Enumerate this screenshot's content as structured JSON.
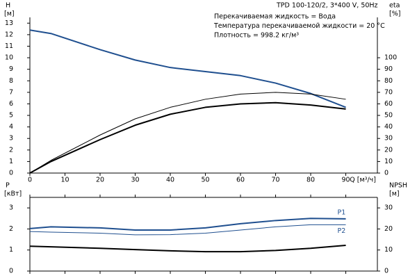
{
  "chart_data": [
    {
      "type": "line",
      "title": "TPD 100-120/2, 3*400 V, 50Hz",
      "annotations": [
        "Перекачиваемая жидкость = Вода",
        "Температура перекачиваемой жидкости = 20 °C",
        "Плотность = 998.2 кг/м³"
      ],
      "x_label": "Q [м³/ч]",
      "y_label": "H",
      "y_unit": "[м]",
      "y2_label": "eta",
      "y2_unit": "[%]",
      "x": [
        0,
        6,
        20,
        30,
        40,
        50,
        60,
        70,
        80,
        90
      ],
      "xlim": [
        0,
        99
      ],
      "xticks": [
        0,
        10,
        20,
        30,
        40,
        50,
        60,
        70,
        80,
        90
      ],
      "ylim": [
        0,
        13.5
      ],
      "yticks": [
        0,
        1,
        2,
        3,
        4,
        5,
        6,
        7,
        8,
        9,
        10,
        11,
        12,
        13
      ],
      "y2lim": [
        0,
        135
      ],
      "y2ticks": [
        0,
        10,
        20,
        30,
        40,
        50,
        60,
        70,
        80,
        90,
        100
      ],
      "series": [
        {
          "color": "#1f4f8f",
          "values": [
            12.4,
            12.1,
            10.7,
            9.8,
            9.15,
            8.8,
            8.45,
            7.8,
            6.9,
            5.7
          ]
        },
        {
          "color": "#000000",
          "axis": "y2",
          "values": [
            0,
            11,
            33,
            47,
            57,
            64,
            68.5,
            70,
            68.5,
            64
          ]
        },
        {
          "color": "#000000",
          "axis": "y2",
          "values": [
            0,
            10,
            29,
            41.5,
            51,
            57,
            60,
            61,
            59,
            55.5
          ]
        }
      ]
    },
    {
      "type": "line",
      "y_label": "P",
      "y_unit": "[кВт]",
      "y2_label": "NPSH",
      "y2_unit": "[м]",
      "x": [
        0,
        6,
        20,
        30,
        40,
        50,
        60,
        70,
        80,
        90
      ],
      "xlim": [
        0,
        99
      ],
      "ylim": [
        0,
        3.5
      ],
      "yticks": [
        0,
        1,
        2,
        3
      ],
      "y2lim": [
        0,
        35
      ],
      "y2ticks": [
        0,
        10,
        20,
        30
      ],
      "series": [
        {
          "name": "P1",
          "color": "#1f4f8f",
          "values": [
            2.02,
            2.1,
            2.05,
            1.95,
            1.95,
            2.05,
            2.25,
            2.4,
            2.5,
            2.48
          ]
        },
        {
          "name": "P2",
          "color": "#1f4f8f",
          "values": [
            1.88,
            1.85,
            1.8,
            1.72,
            1.73,
            1.8,
            1.95,
            2.1,
            2.2,
            2.2
          ]
        },
        {
          "color": "#000000",
          "axis": "y2",
          "values": [
            11.8,
            11.5,
            10.8,
            10.2,
            9.6,
            9.2,
            9.2,
            9.8,
            10.8,
            12.2
          ]
        }
      ]
    }
  ]
}
